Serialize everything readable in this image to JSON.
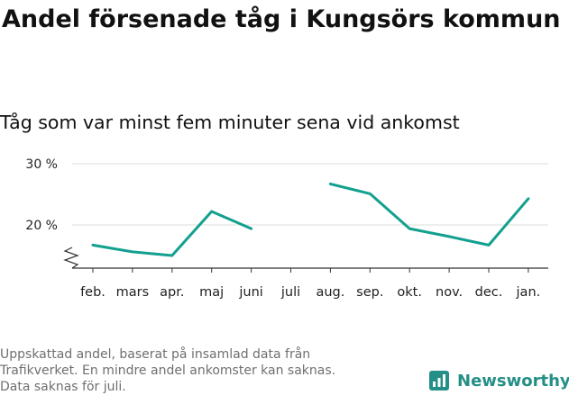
{
  "header": {
    "title": "Andel försenade tåg i Kungsörs kommun",
    "subtitle": "Tåg som var minst fem minuter sena vid ankomst"
  },
  "footer": {
    "note_lines": [
      "Uppskattad andel, baserat på insamlad data från",
      "Trafikverket. En mindre andel ankomster kan saknas.",
      "Data saknas för juli."
    ],
    "brand": "Newsworthy",
    "brand_icon": "bar-chart-logo-icon"
  },
  "colors": {
    "line": "#12a08f",
    "grid": "#dddddd",
    "axis": "#333333",
    "brand": "#238f87"
  },
  "chart_data": {
    "type": "line",
    "categories": [
      "feb.",
      "mars",
      "apr.",
      "maj",
      "juni",
      "juli",
      "aug.",
      "sep.",
      "okt.",
      "nov.",
      "dec.",
      "jan."
    ],
    "series": [
      {
        "values": [
          16.7,
          15.6,
          15.0,
          22.2,
          19.4,
          null,
          26.7,
          25.1,
          19.4,
          18.1,
          16.7,
          24.3
        ]
      }
    ],
    "yticks": [
      20,
      30
    ],
    "ytick_labels": [
      "20 %",
      "30 %"
    ],
    "ylim": [
      13.5,
      30
    ],
    "axis_break": true,
    "grid": true,
    "legend": "none"
  }
}
